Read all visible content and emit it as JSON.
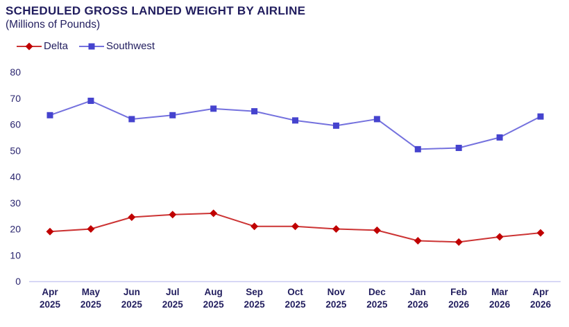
{
  "chart_data": {
    "type": "line",
    "title": "SCHEDULED GROSS LANDED WEIGHT BY AIRLINE",
    "subtitle": "(Millions of Pounds)",
    "categories": [
      "Apr 2025",
      "May 2025",
      "Jun 2025",
      "Jul 2025",
      "Aug 2025",
      "Sep 2025",
      "Oct 2025",
      "Nov 2025",
      "Dec 2025",
      "Jan 2026",
      "Feb 2026",
      "Mar 2026",
      "Apr 2026"
    ],
    "series": [
      {
        "name": "Delta",
        "marker": "diamond",
        "line_color": "#CC3333",
        "marker_color": "#C00000",
        "values": [
          19,
          20,
          24.5,
          25.5,
          26,
          21,
          21,
          20,
          19.5,
          15.5,
          15,
          17,
          18.5
        ]
      },
      {
        "name": "Southwest",
        "marker": "square",
        "line_color": "#7471DE",
        "marker_color": "#4543CE",
        "values": [
          63.5,
          69,
          62,
          63.5,
          66,
          65,
          61.5,
          59.5,
          62,
          50.5,
          51,
          55,
          63
        ]
      }
    ],
    "xlabel": "",
    "ylabel": "",
    "ylim": [
      0,
      80
    ],
    "yticks": [
      0,
      10,
      20,
      30,
      40,
      50,
      60,
      70,
      80
    ],
    "grid": false,
    "legend_position": "top-left"
  },
  "styles": {
    "title_text": "#211D5E",
    "tick_text": "#29246E",
    "xlabel_text": "#211D5E",
    "axis_line": "#C9C9F2",
    "background": "#FFFFFF"
  }
}
